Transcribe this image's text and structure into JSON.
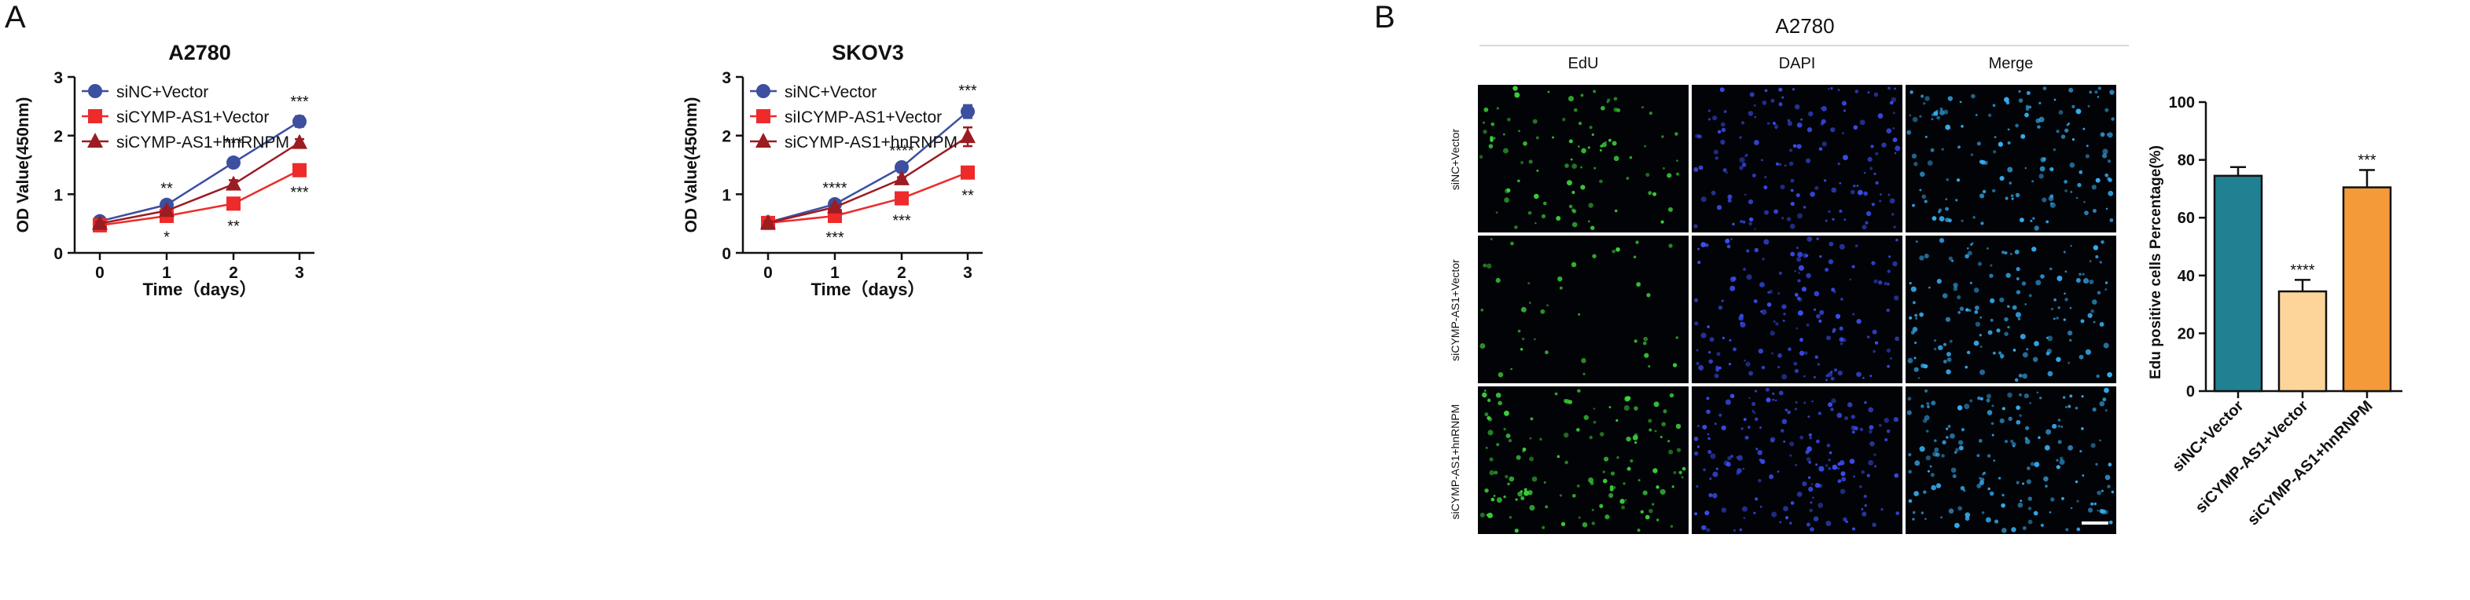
{
  "panels": {
    "a_label": "A",
    "b_label": "B"
  },
  "chart_data": [
    {
      "type": "line",
      "title": "A2780",
      "xlabel": "Time（days）",
      "ylabel": "OD Value(450nm)",
      "x": [
        0,
        1,
        2,
        3
      ],
      "xticks": [
        "0",
        "1",
        "2",
        "3"
      ],
      "yticks": [
        "0",
        "1",
        "2",
        "3"
      ],
      "ylim": [
        0,
        3
      ],
      "legend_position": "top-left",
      "series": [
        {
          "name": "siNC+Vector",
          "color": "#3c4fa0",
          "marker": "circle",
          "values": [
            0.54,
            0.82,
            1.54,
            2.24
          ],
          "errors": [
            0.03,
            0.03,
            0.08,
            0.09
          ],
          "annotations": [
            "",
            "**",
            "***",
            "***"
          ]
        },
        {
          "name": "siCYMP-AS1+Vector",
          "color": "#ee2a2a",
          "marker": "square",
          "values": [
            0.47,
            0.63,
            0.84,
            1.41
          ],
          "errors": [
            0.03,
            0.02,
            0.04,
            0.04
          ],
          "annotations": [
            "",
            "*",
            "**",
            "***"
          ]
        },
        {
          "name": "siCYMP-AS1+hnRNPM",
          "color": "#9b1c22",
          "marker": "triangle",
          "values": [
            0.5,
            0.72,
            1.17,
            1.88
          ],
          "errors": [
            0.03,
            0.03,
            0.07,
            0.06
          ],
          "annotations": [
            "",
            "",
            "",
            ""
          ]
        }
      ]
    },
    {
      "type": "line",
      "title": "SKOV3",
      "xlabel": "Time（days）",
      "ylabel": "OD Value(450nm)",
      "x": [
        0,
        1,
        2,
        3
      ],
      "xticks": [
        "0",
        "1",
        "2",
        "3"
      ],
      "yticks": [
        "0",
        "1",
        "2",
        "3"
      ],
      "ylim": [
        0,
        3
      ],
      "legend_position": "top-left",
      "series": [
        {
          "name": "siNC+Vector",
          "color": "#3c4fa0",
          "marker": "circle",
          "values": [
            0.52,
            0.83,
            1.46,
            2.41
          ],
          "errors": [
            0.03,
            0.03,
            0.03,
            0.11
          ],
          "annotations": [
            "",
            "****",
            "****",
            "***"
          ]
        },
        {
          "name": "siICYMP-AS1+Vector",
          "color": "#ee2a2a",
          "marker": "square",
          "values": [
            0.51,
            0.63,
            0.93,
            1.37
          ],
          "errors": [
            0.03,
            0.03,
            0.04,
            0.05
          ],
          "annotations": [
            "",
            "***",
            "***",
            "**"
          ]
        },
        {
          "name": "siCYMP-AS1+hnRNPM",
          "color": "#9b1c22",
          "marker": "triangle",
          "values": [
            0.51,
            0.78,
            1.26,
            1.98
          ],
          "errors": [
            0.03,
            0.03,
            0.03,
            0.16
          ],
          "annotations": [
            "",
            "",
            "",
            ""
          ]
        }
      ]
    },
    {
      "type": "bar",
      "title": "",
      "xlabel": "",
      "ylabel": "Edu positive cells Percentage(%)",
      "categories": [
        "siNC+Vector",
        "siCYMP-AS1+Vector",
        "siCYMP-AS1+hnRNPM"
      ],
      "values": [
        74.5,
        34.5,
        70.5
      ],
      "errors": [
        3,
        4,
        6
      ],
      "colors": [
        "#1f8192",
        "#fdd59a",
        "#f59a38"
      ],
      "annotations": [
        "",
        "****",
        "***"
      ],
      "ylim": [
        0,
        100
      ],
      "yticks": [
        "0",
        "20",
        "40",
        "60",
        "80",
        "100"
      ]
    }
  ],
  "micrograph": {
    "title": "A2780",
    "columns": [
      "EdU",
      "DAPI",
      "Merge"
    ],
    "rows": [
      "siNC+Vector",
      "siCYMP-AS1+Vector",
      "siCYMP-AS1+hnRNPM"
    ],
    "channel_colors": {
      "EdU": "#3ddc3d",
      "DAPI": "#3d52ff",
      "Merge": "#38b6ff"
    }
  }
}
